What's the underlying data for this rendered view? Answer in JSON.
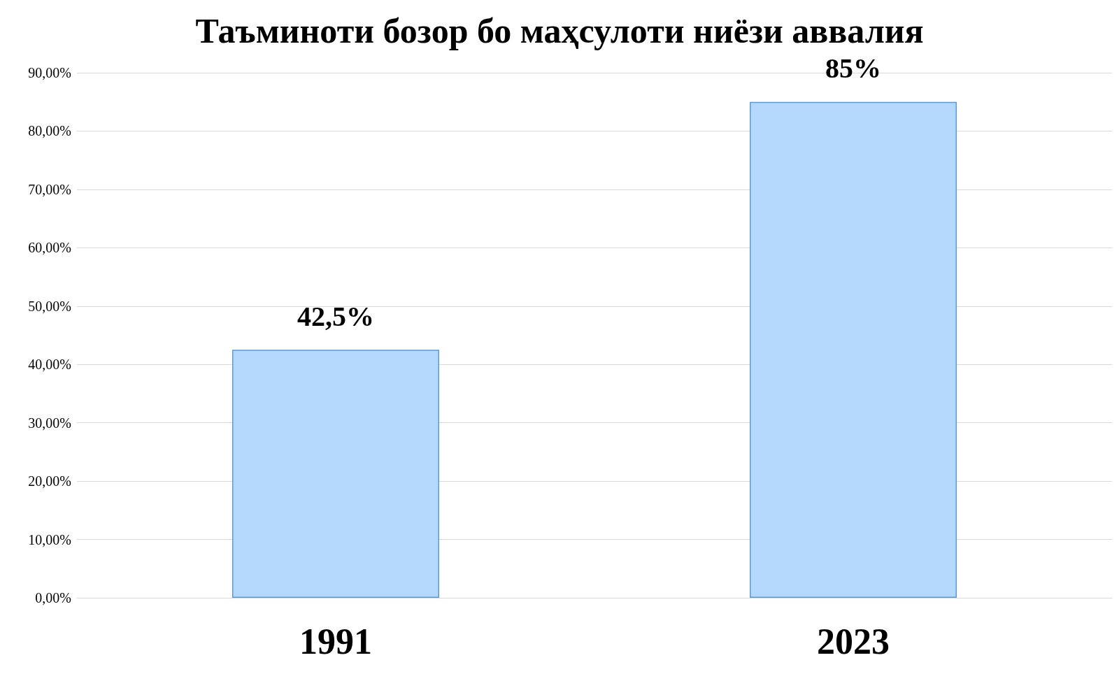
{
  "chart_data": {
    "type": "bar",
    "title": "Таъминоти бозор бо маҳсулоти ниёзи аввалия",
    "categories": [
      "1991",
      "2023"
    ],
    "values": [
      42.5,
      85
    ],
    "value_labels": [
      "42,5%",
      "85%"
    ],
    "color": "#b5d8fd",
    "ylim": [
      0,
      90
    ],
    "yticks": [
      {
        "value": 0,
        "label": "0,00%"
      },
      {
        "value": 10,
        "label": "10,00%"
      },
      {
        "value": 20,
        "label": "20,00%"
      },
      {
        "value": 30,
        "label": "30,00%"
      },
      {
        "value": 40,
        "label": "40,00%"
      },
      {
        "value": 50,
        "label": "50,00%"
      },
      {
        "value": 60,
        "label": "60,00%"
      },
      {
        "value": 70,
        "label": "70,00%"
      },
      {
        "value": 80,
        "label": "80,00%"
      },
      {
        "value": 90,
        "label": "90,00%"
      }
    ],
    "grid": "y"
  }
}
